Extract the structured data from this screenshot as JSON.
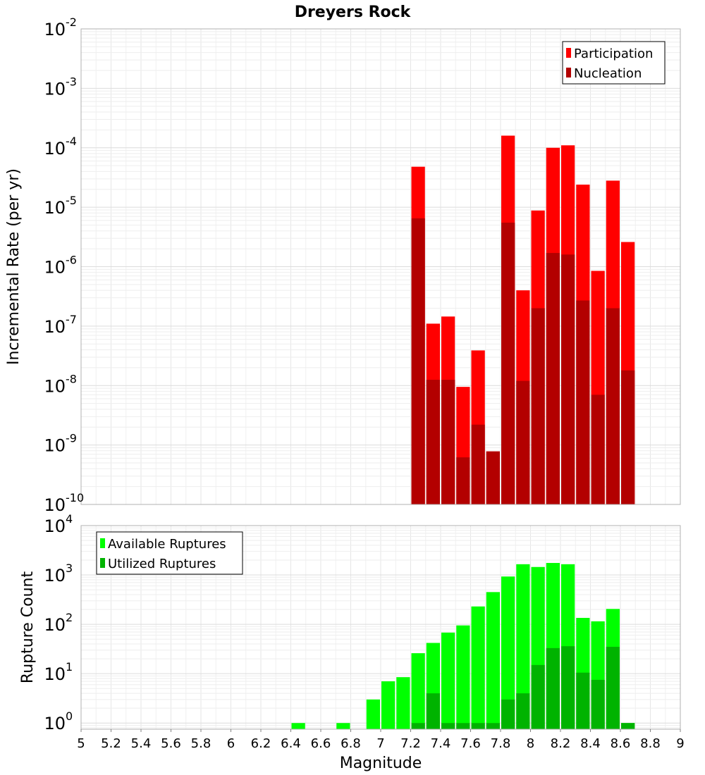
{
  "chart_data": [
    {
      "type": "bar",
      "title": "Dreyers Rock",
      "xlabel": "Magnitude",
      "ylabel": "Incremental Rate (per yr)",
      "yscale": "log",
      "ylim": [
        1e-10,
        0.01
      ],
      "xlim": [
        5,
        9
      ],
      "grid": true,
      "legend_position": "top-right",
      "y_ticks": [
        {
          "base": "10",
          "exp": "-10"
        },
        {
          "base": "10",
          "exp": "-9"
        },
        {
          "base": "10",
          "exp": "-8"
        },
        {
          "base": "10",
          "exp": "-7"
        },
        {
          "base": "10",
          "exp": "-6"
        },
        {
          "base": "10",
          "exp": "-5"
        },
        {
          "base": "10",
          "exp": "-4"
        },
        {
          "base": "10",
          "exp": "-3"
        },
        {
          "base": "10",
          "exp": "-2"
        }
      ],
      "x": [
        7.25,
        7.35,
        7.45,
        7.55,
        7.65,
        7.75,
        7.85,
        7.95,
        8.05,
        8.15,
        8.25,
        8.35,
        8.45,
        8.55,
        8.65
      ],
      "series": [
        {
          "name": "Participation",
          "color": "#ff0000",
          "values": [
            4.8e-05,
            1.1e-07,
            1.45e-07,
            9.5e-09,
            3.9e-08,
            7.8e-10,
            0.00016,
            4e-07,
            8.8e-06,
            0.0001,
            0.00011,
            2.4e-05,
            8.5e-07,
            2.8e-05,
            2.6e-06
          ]
        },
        {
          "name": "Nucleation",
          "color": "#b30000",
          "values": [
            6.5e-06,
            1.25e-08,
            1.25e-08,
            6.2e-10,
            2.2e-09,
            7.8e-10,
            5.5e-06,
            1.2e-08,
            2e-07,
            1.7e-06,
            1.6e-06,
            2.7e-07,
            7e-09,
            2e-07,
            1.8e-08
          ]
        }
      ]
    },
    {
      "type": "bar",
      "title": "",
      "xlabel": "Magnitude",
      "ylabel": "Rupture Count",
      "yscale": "log",
      "ylim": [
        0.75,
        10000.0
      ],
      "xlim": [
        5,
        9
      ],
      "grid": true,
      "legend_position": "top-left",
      "x_ticks": [
        "5",
        "5.2",
        "5.4",
        "5.6",
        "5.8",
        "6",
        "6.2",
        "6.4",
        "6.6",
        "6.8",
        "7",
        "7.2",
        "7.4",
        "7.6",
        "7.8",
        "8",
        "8.2",
        "8.4",
        "8.6",
        "8.8",
        "9"
      ],
      "y_ticks": [
        {
          "base": "10",
          "exp": "0"
        },
        {
          "base": "10",
          "exp": "1"
        },
        {
          "base": "10",
          "exp": "2"
        },
        {
          "base": "10",
          "exp": "3"
        },
        {
          "base": "10",
          "exp": "4"
        }
      ],
      "x": [
        6.45,
        6.75,
        6.95,
        7.05,
        7.15,
        7.25,
        7.35,
        7.45,
        7.55,
        7.65,
        7.75,
        7.85,
        7.95,
        8.05,
        8.15,
        8.25,
        8.35,
        8.45,
        8.55,
        8.65
      ],
      "series": [
        {
          "name": "Available Ruptures",
          "color": "#00ff00",
          "values": [
            1,
            1,
            3,
            7,
            8.5,
            26,
            42,
            68,
            95,
            230,
            450,
            930,
            1650,
            1450,
            1750,
            1650,
            135,
            115,
            205,
            1
          ]
        },
        {
          "name": "Utilized Ruptures",
          "color": "#00b300",
          "values": [
            0,
            0,
            0,
            0,
            0,
            1,
            4,
            1,
            1,
            1,
            1,
            3,
            4,
            15,
            33,
            36,
            10.5,
            7.5,
            35,
            1
          ]
        }
      ]
    }
  ]
}
